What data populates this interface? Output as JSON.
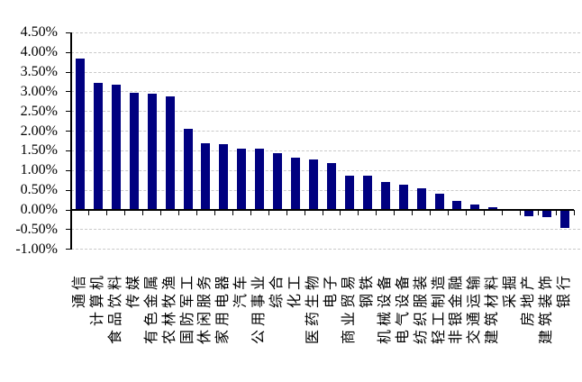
{
  "chart_data": {
    "type": "bar",
    "title": "",
    "xlabel": "",
    "ylabel": "",
    "unit": "%",
    "categories": [
      "通信",
      "计算机",
      "食品饮料",
      "传媒",
      "有色金属",
      "农林牧渔",
      "国防军工",
      "休闲服务",
      "家用电器",
      "汽车",
      "公用事业",
      "综合",
      "化工",
      "医药生物",
      "电子",
      "商业贸易",
      "钢铁",
      "机械设备",
      "电气设备",
      "纺织服装",
      "轻工制造",
      "非银金融",
      "交通运输",
      "建筑材料",
      "采掘",
      "房地产",
      "建筑装饰",
      "银行"
    ],
    "values": [
      3.84,
      3.22,
      3.19,
      2.97,
      2.95,
      2.88,
      2.07,
      1.7,
      1.66,
      1.56,
      1.55,
      1.45,
      1.33,
      1.28,
      1.19,
      0.88,
      0.86,
      0.7,
      0.63,
      0.55,
      0.42,
      0.24,
      0.13,
      0.06,
      0.01,
      -0.15,
      -0.18,
      -0.45
    ],
    "y_axis": {
      "min": -1.0,
      "max": 4.5,
      "step": 0.5,
      "tick_labels": [
        "4.50%",
        "4.00%",
        "3.50%",
        "3.00%",
        "2.50%",
        "2.00%",
        "1.50%",
        "1.00%",
        "0.50%",
        "0.00%",
        "-0.50%",
        "-1.00%"
      ]
    },
    "grid": "horizontal-dashed",
    "legend": null,
    "bar_color": "#000080",
    "gridline_color": "#c9c9c9",
    "axis_color": "#000000"
  }
}
